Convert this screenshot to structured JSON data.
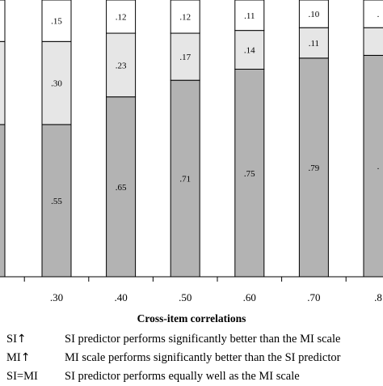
{
  "chart_data": {
    "type": "bar",
    "stacked": true,
    "normalized_to": 1,
    "xlabel": "Cross-item correlations",
    "categories": [
      ".30",
      ".40",
      ".50",
      ".60",
      ".70",
      ".8"
    ],
    "series": [
      {
        "key": "si_up",
        "color": "#b3b3b3",
        "values": [
          0.55,
          0.65,
          0.71,
          0.75,
          0.79,
          0.8
        ],
        "labels": [
          ".55",
          ".65",
          ".71",
          ".75",
          ".79",
          "."
        ]
      },
      {
        "key": "si_eq_mi",
        "color": "#e6e6e6",
        "values": [
          0.3,
          0.23,
          0.17,
          0.14,
          0.11,
          0.1
        ],
        "labels": [
          ".30",
          ".23",
          ".17",
          ".14",
          ".11",
          ""
        ]
      },
      {
        "key": "mi_up",
        "color": "#ffffff",
        "values": [
          0.15,
          0.12,
          0.12,
          0.11,
          0.1,
          0.1
        ],
        "labels": [
          ".15",
          ".12",
          ".12",
          ".11",
          ".10",
          "."
        ]
      }
    ],
    "partial_left_bar": {
      "values": [
        0.55,
        0.3,
        0.15
      ]
    },
    "ylim": [
      0,
      1
    ],
    "grid": false
  },
  "legend": [
    {
      "key_text": "SI",
      "arrow": "↑",
      "description": "SI predictor performs significantly better than the MI scale"
    },
    {
      "key_text": "MI",
      "arrow": "↑",
      "description": "MI scale performs significantly better than the SI predictor"
    },
    {
      "key_text": "SI=MI",
      "arrow": "",
      "description": "SI predictor performs equally well as the MI scale"
    }
  ]
}
